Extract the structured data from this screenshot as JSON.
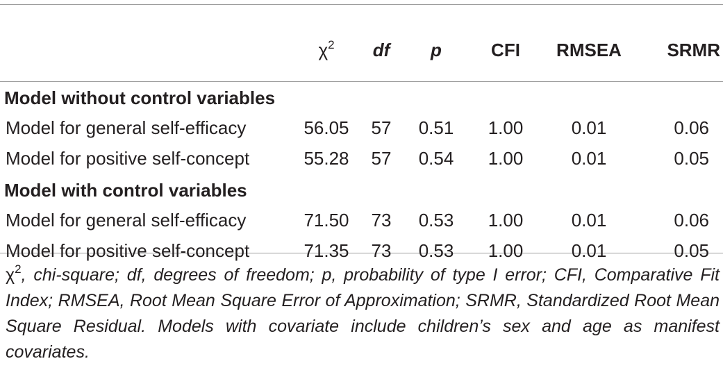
{
  "header": {
    "chi": "χ",
    "chi_sup": "2",
    "df": "df",
    "p": "p",
    "cfi": "CFI",
    "rmsea": "RMSEA",
    "srmr": "SRMR"
  },
  "groups": [
    {
      "title": "Model without control variables",
      "rows": [
        {
          "label": "Model for general self-efficacy",
          "chi": "56.05",
          "df": "57",
          "p": "0.51",
          "cfi": "1.00",
          "rmsea": "0.01",
          "srmr": "0.06"
        },
        {
          "label": "Model for positive self-concept",
          "chi": "55.28",
          "df": "57",
          "p": "0.54",
          "cfi": "1.00",
          "rmsea": "0.01",
          "srmr": "0.05"
        }
      ]
    },
    {
      "title": "Model with control variables",
      "rows": [
        {
          "label": "Model for general self-efficacy",
          "chi": "71.50",
          "df": "73",
          "p": "0.53",
          "cfi": "1.00",
          "rmsea": "0.01",
          "srmr": "0.06"
        },
        {
          "label": "Model for positive self-concept",
          "chi": "71.35",
          "df": "73",
          "p": "0.53",
          "cfi": "1.00",
          "rmsea": "0.01",
          "srmr": "0.05"
        }
      ]
    }
  ],
  "note": {
    "chi": "χ",
    "chi_sup": "2",
    "text": ", chi-square; df, degrees of freedom; p, probability of type I error; CFI, Comparative Fit Index; RMSEA, Root Mean Square Error of Approximation; SRMR, Standardized Root Mean Square Residual. Models with covariate include children’s sex and age as manifest covariates."
  }
}
